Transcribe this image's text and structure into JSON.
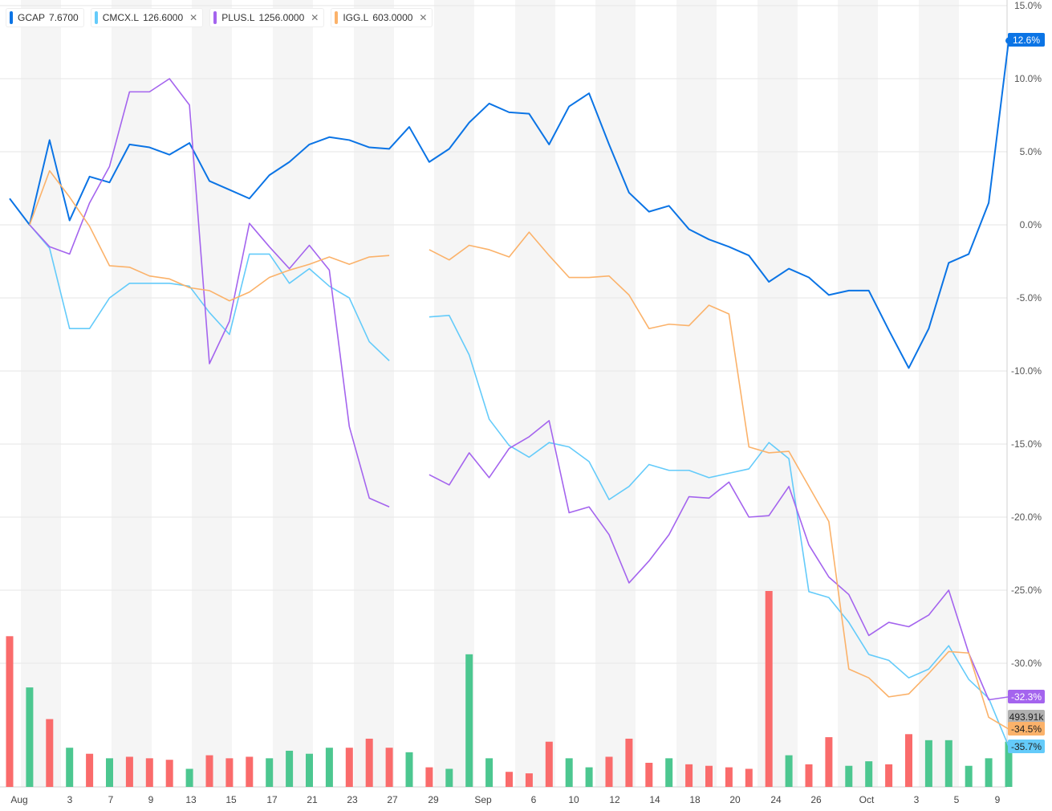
{
  "legend": [
    {
      "symbol": "GCAP",
      "value": "7.6700",
      "color": "#0b74e5",
      "removable": false
    },
    {
      "symbol": "CMCX.L",
      "value": "126.6000",
      "color": "#64cbfa",
      "removable": true
    },
    {
      "symbol": "PLUS.L",
      "value": "1256.0000",
      "color": "#a464ee",
      "removable": true
    },
    {
      "symbol": "IGG.L",
      "value": "603.0000",
      "color": "#fbb26a",
      "removable": true
    }
  ],
  "chart_data": {
    "type": "line",
    "ylim": [
      -38,
      15
    ],
    "y_ticks": [
      "15.0%",
      "10.0%",
      "5.0%",
      "0.0%",
      "-5.0%",
      "-10.0%",
      "-15.0%",
      "-20.0%",
      "-25.0%",
      "-30.0%"
    ],
    "x_tick_labels": [
      "Aug",
      "3",
      "7",
      "9",
      "13",
      "15",
      "17",
      "21",
      "23",
      "27",
      "29",
      "Sep",
      "6",
      "10",
      "12",
      "14",
      "18",
      "20",
      "24",
      "26",
      "Oct",
      "3",
      "5",
      "9"
    ],
    "series": [
      {
        "name": "GCAP",
        "color": "#0b74e5",
        "end_label": "12.6%",
        "values": [
          1.8,
          0.0,
          5.8,
          0.3,
          3.3,
          2.9,
          5.5,
          5.3,
          4.8,
          5.6,
          3.0,
          2.4,
          1.8,
          3.4,
          4.3,
          5.5,
          6.0,
          5.8,
          5.3,
          5.2,
          6.7,
          4.3,
          5.2,
          7.0,
          8.3,
          7.7,
          7.6,
          5.5,
          8.1,
          9.0,
          5.5,
          2.2,
          0.9,
          1.3,
          -0.3,
          -1.0,
          -1.5,
          -2.1,
          -3.9,
          -3.0,
          -3.6,
          -4.8,
          -4.5,
          -4.5,
          -7.2,
          -9.8,
          -7.1,
          -2.6,
          -2.0,
          1.5,
          12.6
        ]
      },
      {
        "name": "CMCX.L",
        "color": "#64cbfa",
        "end_label": "-35.7%",
        "values": [
          null,
          0.0,
          -1.6,
          -7.1,
          -7.1,
          -5.0,
          -4.0,
          -4.0,
          -4.0,
          -4.2,
          -6.0,
          -7.5,
          -2.0,
          -2.0,
          -4.0,
          -3.0,
          -4.2,
          -5.0,
          -8.0,
          -9.3,
          null,
          -6.3,
          -6.2,
          -8.9,
          -13.3,
          -15.1,
          -15.9,
          -14.9,
          -15.2,
          -16.2,
          -18.8,
          -17.9,
          -16.4,
          -16.8,
          -16.8,
          -17.3,
          -17.0,
          -16.7,
          -14.9,
          -16.0,
          -25.1,
          -25.5,
          -27.2,
          -29.4,
          -29.8,
          -31.0,
          -30.4,
          -28.8,
          -31.1,
          -32.4,
          -35.7
        ]
      },
      {
        "name": "PLUS.L",
        "color": "#a464ee",
        "end_label": "-32.3%",
        "values": [
          null,
          0.0,
          -1.5,
          -2.0,
          1.5,
          4.0,
          9.1,
          9.1,
          10.0,
          8.2,
          -9.5,
          -6.6,
          0.1,
          -1.5,
          -3.0,
          -1.4,
          -3.1,
          -13.8,
          -18.7,
          -19.3,
          null,
          -17.1,
          -17.8,
          -15.6,
          -17.3,
          -15.3,
          -14.5,
          -13.4,
          -19.7,
          -19.3,
          -21.2,
          -24.5,
          -23.0,
          -21.2,
          -18.6,
          -18.7,
          -17.6,
          -20.0,
          -19.9,
          -17.9,
          -21.9,
          -24.1,
          -25.3,
          -28.1,
          -27.2,
          -27.5,
          -26.7,
          -25.0,
          -29.3,
          -32.5,
          -32.3
        ]
      },
      {
        "name": "IGG.L",
        "color": "#fbb26a",
        "end_label": "-34.5%",
        "values": [
          null,
          0.0,
          3.7,
          1.9,
          -0.1,
          -2.8,
          -2.9,
          -3.5,
          -3.7,
          -4.3,
          -4.5,
          -5.2,
          -4.6,
          -3.6,
          -3.1,
          -2.7,
          -2.2,
          -2.7,
          -2.2,
          -2.1,
          null,
          -1.7,
          -2.4,
          -1.4,
          -1.7,
          -2.2,
          -0.5,
          -2.1,
          -3.6,
          -3.6,
          -3.5,
          -4.8,
          -7.1,
          -6.8,
          -6.9,
          -5.5,
          -6.1,
          -15.2,
          -15.6,
          -15.5,
          -17.9,
          -20.3,
          -30.4,
          -31.0,
          -32.3,
          -32.1,
          -30.7,
          -29.2,
          -29.3,
          -33.7,
          -34.5
        ]
      }
    ],
    "volume": {
      "last_label": "493.91k",
      "bars": [
        {
          "v": 100,
          "up": false
        },
        {
          "v": 66,
          "up": true
        },
        {
          "v": 45,
          "up": false
        },
        {
          "v": 26,
          "up": true
        },
        {
          "v": 22,
          "up": false
        },
        {
          "v": 19,
          "up": true
        },
        {
          "v": 20,
          "up": false
        },
        {
          "v": 19,
          "up": false
        },
        {
          "v": 18,
          "up": false
        },
        {
          "v": 12,
          "up": true
        },
        {
          "v": 21,
          "up": false
        },
        {
          "v": 19,
          "up": false
        },
        {
          "v": 20,
          "up": false
        },
        {
          "v": 19,
          "up": true
        },
        {
          "v": 24,
          "up": true
        },
        {
          "v": 22,
          "up": true
        },
        {
          "v": 26,
          "up": true
        },
        {
          "v": 26,
          "up": false
        },
        {
          "v": 32,
          "up": false
        },
        {
          "v": 26,
          "up": false
        },
        {
          "v": 23,
          "up": true
        },
        {
          "v": 13,
          "up": false
        },
        {
          "v": 12,
          "up": true
        },
        {
          "v": 88,
          "up": true
        },
        {
          "v": 19,
          "up": true
        },
        {
          "v": 10,
          "up": false
        },
        {
          "v": 9,
          "up": false
        },
        {
          "v": 30,
          "up": false
        },
        {
          "v": 19,
          "up": true
        },
        {
          "v": 13,
          "up": true
        },
        {
          "v": 20,
          "up": false
        },
        {
          "v": 32,
          "up": false
        },
        {
          "v": 16,
          "up": false
        },
        {
          "v": 19,
          "up": true
        },
        {
          "v": 15,
          "up": false
        },
        {
          "v": 14,
          "up": false
        },
        {
          "v": 13,
          "up": false
        },
        {
          "v": 12,
          "up": false
        },
        {
          "v": 130,
          "up": false
        },
        {
          "v": 21,
          "up": true
        },
        {
          "v": 15,
          "up": false
        },
        {
          "v": 33,
          "up": false
        },
        {
          "v": 14,
          "up": true
        },
        {
          "v": 17,
          "up": true
        },
        {
          "v": 15,
          "up": false
        },
        {
          "v": 35,
          "up": false
        },
        {
          "v": 31,
          "up": true
        },
        {
          "v": 31,
          "up": true
        },
        {
          "v": 14,
          "up": true
        },
        {
          "v": 19,
          "up": true
        },
        {
          "v": 30,
          "up": true
        }
      ]
    }
  }
}
